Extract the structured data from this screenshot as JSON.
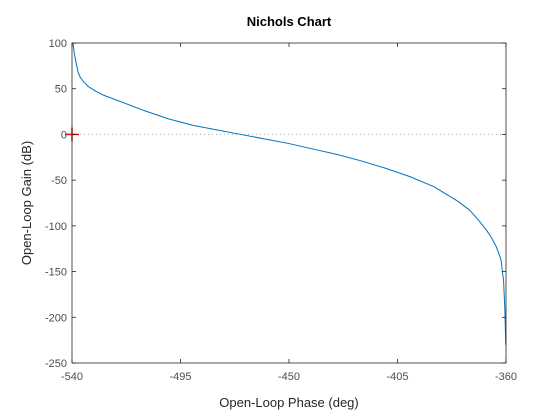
{
  "chart_data": {
    "type": "line",
    "title": "Nichols Chart",
    "xlabel": "Open-Loop Phase (deg)",
    "ylabel": "Open-Loop Gain (dB)",
    "xlim": [
      -540,
      -360
    ],
    "ylim": [
      -250,
      100
    ],
    "xticks": [
      -540,
      -495,
      -450,
      -405,
      -360
    ],
    "yticks": [
      -250,
      -200,
      -150,
      -100,
      -50,
      0,
      50,
      100
    ],
    "grid": false,
    "reference_line": {
      "y": 0,
      "style": "dotted",
      "color": "#a0a0a0"
    },
    "critical_point": {
      "x": -540,
      "y": 0,
      "marker": "plus",
      "color": "#ff0000"
    },
    "series": [
      {
        "color": "#0072bd",
        "x": [
          -539.6,
          -539.0,
          -538.2,
          -537.5,
          -536.5,
          -535,
          -533,
          -530,
          -527,
          -523,
          -518,
          -510,
          -500,
          -490,
          -480,
          -470,
          -460,
          -450,
          -440,
          -430,
          -420,
          -410,
          -400,
          -390,
          -380,
          -375,
          -371,
          -368,
          -366,
          -364,
          -363,
          -362,
          -361.5,
          -361,
          -360.5,
          -360.1
        ],
        "y": [
          100,
          88,
          77,
          68,
          62,
          57,
          52,
          47,
          43,
          39,
          34,
          26,
          17,
          10,
          5,
          0,
          -5,
          -10,
          -16,
          -22,
          -29,
          -37,
          -46,
          -57,
          -73,
          -83,
          -95,
          -105,
          -113,
          -123,
          -130,
          -138,
          -150,
          -160,
          -190,
          -230
        ]
      }
    ]
  }
}
